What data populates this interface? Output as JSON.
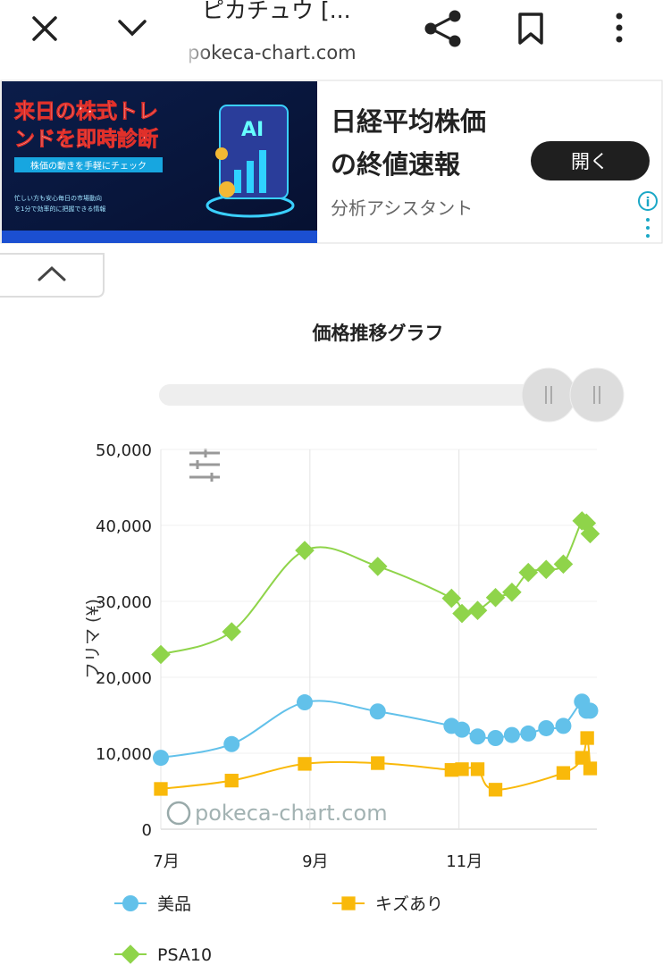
{
  "browser": {
    "title": "ピカチュウ [...",
    "url": "pokeca-chart.com"
  },
  "ad": {
    "image_headline_lines": [
      "来日の株式トレ",
      "ンドを即時診断"
    ],
    "image_subline": "株価の動きを手軽にチェック",
    "image_note_lines": [
      "忙しい方も安心毎日の市場動向",
      "を1分で効率的に把握できる情報"
    ],
    "headline_lines": [
      "日経平均株価",
      "の終値速報"
    ],
    "button": "開く",
    "advertiser": "分析アシスタント"
  },
  "chart_data": {
    "type": "line",
    "title": "価格推移グラフ",
    "y_label": "フリマ (¥)",
    "watermark": "pokeca-chart.com",
    "smooth": true,
    "legend": "bottom",
    "xlim": [
      7,
      12.85
    ],
    "xticks": [
      {
        "value": 7,
        "label": "7月"
      },
      {
        "value": 9,
        "label": "9月"
      },
      {
        "value": 11,
        "label": "11月"
      }
    ],
    "ylim": [
      0,
      50000
    ],
    "yticks": [
      0,
      {
        "value": 10000,
        "label": "10,000"
      },
      {
        "value": 20000,
        "label": "20,000"
      },
      {
        "value": 30000,
        "label": "30,000"
      },
      {
        "value": 40000,
        "label": "40,000"
      },
      {
        "value": 50000,
        "label": "50,000"
      }
    ],
    "series": [
      {
        "name": "美品",
        "color": "#62c1ea",
        "marker": "circle",
        "x": [
          7.0,
          7.95,
          8.93,
          9.91,
          10.9,
          11.04,
          11.25,
          11.49,
          11.71,
          11.93,
          12.17,
          12.4,
          12.65,
          12.71,
          12.76
        ],
        "values": [
          9400,
          11200,
          16700,
          15500,
          13600,
          13100,
          12200,
          12000,
          12400,
          12600,
          13300,
          13600,
          16800,
          15600,
          15600
        ]
      },
      {
        "name": "キズあり",
        "color": "#f9b90a",
        "marker": "square",
        "x": [
          7.0,
          7.95,
          8.93,
          9.91,
          10.9,
          11.04,
          11.25,
          11.49,
          12.4,
          12.65,
          12.72,
          12.76
        ],
        "values": [
          5300,
          6400,
          8600,
          8700,
          7800,
          7900,
          7900,
          5200,
          7400,
          9400,
          12000,
          8000
        ]
      },
      {
        "name": "PSA10",
        "color": "#8fd44a",
        "marker": "diamond",
        "x": [
          7.0,
          7.95,
          8.93,
          9.91,
          10.9,
          11.04,
          11.25,
          11.49,
          11.71,
          11.93,
          12.17,
          12.4,
          12.65,
          12.71,
          12.76
        ],
        "values": [
          23000,
          26000,
          36700,
          34600,
          30400,
          28400,
          28800,
          30500,
          31200,
          33800,
          34200,
          34900,
          40600,
          40300,
          38900
        ]
      }
    ]
  }
}
